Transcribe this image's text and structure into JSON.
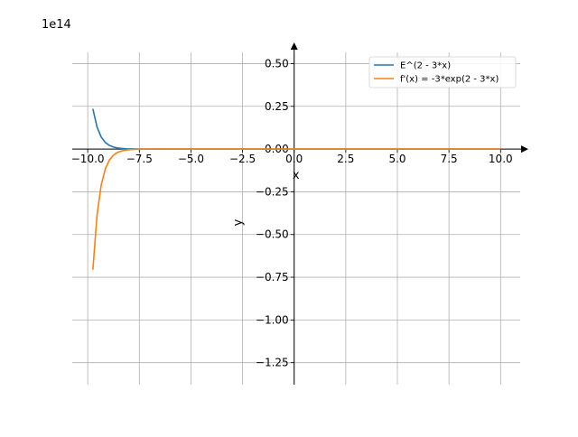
{
  "chart_data": {
    "type": "line",
    "title": "",
    "xlabel": "x",
    "ylabel": "y",
    "y_scale_label": "1e14",
    "xlim": [
      -10.75,
      10.95
    ],
    "ylim": [
      -1.3784,
      0.5658
    ],
    "xticks": [
      -10.0,
      -7.5,
      -5.0,
      -2.5,
      0.0,
      2.5,
      5.0,
      7.5,
      10.0
    ],
    "xtick_labels": [
      "−10.0",
      "−7.5",
      "−5.0",
      "−2.5",
      "0.0",
      "2.5",
      "5.0",
      "7.5",
      "10.0"
    ],
    "yticks": [
      0.5,
      0.25,
      0.0,
      -0.25,
      -0.5,
      -0.75,
      -1.0,
      -1.25
    ],
    "ytick_labels": [
      "0.50",
      "0.25",
      "0.00",
      "−0.25",
      "−0.50",
      "−0.75",
      "−1.00",
      "−1.25"
    ],
    "grid": true,
    "legend_position": "top-right",
    "series": [
      {
        "name": "E^(2 - 3*x)",
        "color": "#1f77b4",
        "x": [
          -9.75,
          -9.55,
          -9.35,
          -9.15,
          -8.95,
          -8.75,
          -8.55,
          -8.35,
          -8.15,
          -7.95,
          -7.75,
          -7.55,
          -7.35,
          -7.0,
          -6.0,
          -5.0,
          -2.5,
          0.0,
          2.5,
          5.0,
          7.5,
          10.0
        ],
        "y": [
          0.2353,
          0.1291,
          0.0708,
          0.0388,
          0.0213,
          0.0117,
          0.0064,
          0.0035,
          0.0019,
          0.0011,
          0.0006,
          0.0003,
          0.0002,
          0.0,
          0.0,
          0.0,
          0.0,
          0.0,
          0.0,
          0.0,
          0.0,
          0.0
        ]
      },
      {
        "name": "f'(x) = -3*exp(2 - 3*x)",
        "color": "#ff7f0e",
        "x": [
          -9.75,
          -9.55,
          -9.35,
          -9.15,
          -8.95,
          -8.75,
          -8.55,
          -8.35,
          -8.15,
          -7.95,
          -7.75,
          -7.55,
          -7.35,
          -7.0,
          -6.0,
          -5.0,
          -2.5,
          0.0,
          2.5,
          5.0,
          7.5,
          10.0
        ],
        "y": [
          -0.7058,
          -0.3872,
          -0.2124,
          -0.1165,
          -0.0639,
          -0.0351,
          -0.0192,
          -0.0106,
          -0.0058,
          -0.0032,
          -0.0017,
          -0.001,
          -0.0005,
          0.0,
          0.0,
          0.0,
          0.0,
          0.0,
          0.0,
          0.0,
          0.0,
          0.0
        ]
      }
    ]
  }
}
